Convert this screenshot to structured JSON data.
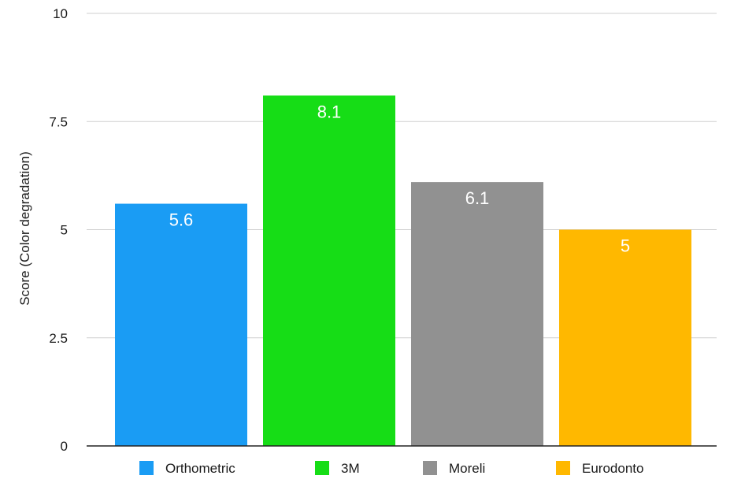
{
  "chart_data": {
    "type": "bar",
    "title": "",
    "xlabel": "",
    "ylabel": "Score (Color degradation)",
    "ylim": [
      0,
      10
    ],
    "yticks": [
      "0",
      "2.5",
      "5",
      "7.5",
      "10"
    ],
    "grid": true,
    "legend_position": "bottom",
    "categories": [
      "Orthometric",
      "3M",
      "Moreli",
      "Eurodonto"
    ],
    "values": [
      5.6,
      8.1,
      6.1,
      5
    ],
    "value_labels": [
      "5.6",
      "8.1",
      "6.1",
      "5"
    ],
    "colors": [
      "#1a9cf4",
      "#16dd16",
      "#919191",
      "#ffb800"
    ]
  }
}
